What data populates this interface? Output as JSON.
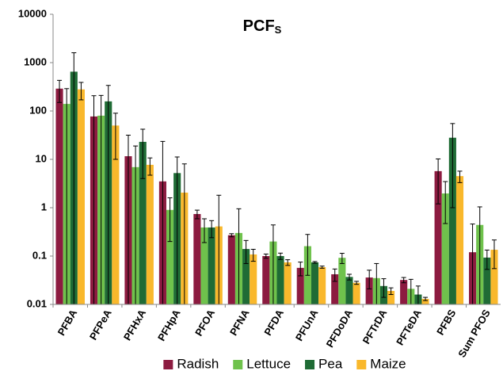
{
  "chart_data": {
    "type": "bar",
    "title": "PCF",
    "title_subscript": "S",
    "categories": [
      "PFBA",
      "PFPeA",
      "PFHxA",
      "PFHpA",
      "PFOA",
      "PFNA",
      "PFDA",
      "PFUnA",
      "PFDoDA",
      "PFTrDA",
      "PFTeDA",
      "PFBS",
      "Sum PFOS"
    ],
    "series": [
      {
        "name": "Radish",
        "color": "#8c1b40",
        "values": [
          290,
          77,
          11.6,
          3.5,
          0.74,
          0.27,
          0.1,
          0.057,
          0.042,
          0.036,
          0.032,
          5.7,
          0.12
        ],
        "errors": [
          140,
          130,
          20,
          20,
          0.15,
          0.02,
          0.01,
          0.018,
          0.012,
          0.015,
          0.004,
          4.5,
          0.34
        ]
      },
      {
        "name": "Lettuce",
        "color": "#6fc24c",
        "values": [
          140,
          80,
          6.9,
          0.9,
          0.39,
          0.3,
          0.2,
          0.16,
          0.092,
          0.035,
          0.021,
          1.97,
          0.44
        ],
        "errors": [
          150,
          130,
          12,
          0.7,
          0.2,
          0.65,
          0.24,
          0.12,
          0.022,
          0.035,
          0.012,
          1.5,
          0.6
        ]
      },
      {
        "name": "Pea",
        "color": "#1f6b35",
        "values": [
          650,
          158,
          23,
          5.2,
          0.39,
          0.14,
          0.1,
          0.074,
          0.037,
          0.024,
          0.016,
          28,
          0.093
        ],
        "errors": [
          950,
          180,
          19,
          6,
          0.15,
          0.07,
          0.015,
          0.003,
          0.005,
          0.01,
          0.008,
          27,
          0.04
        ]
      },
      {
        "name": "Maize",
        "color": "#f9b82c",
        "values": [
          280,
          50,
          7.7,
          2.05,
          0.41,
          0.108,
          0.074,
          0.059,
          0.028,
          0.019,
          0.013,
          4.5,
          0.135
        ],
        "errors": [
          110,
          40,
          3,
          6,
          1.4,
          0.03,
          0.01,
          0.003,
          0.002,
          0.003,
          0.001,
          1.2,
          0.08
        ]
      }
    ],
    "log_scale": true,
    "grid": false,
    "ylim": [
      0.01,
      10000
    ],
    "yticks": [
      10000,
      1000,
      100,
      10,
      1,
      0.1,
      0.01
    ],
    "legend": "bottom"
  }
}
